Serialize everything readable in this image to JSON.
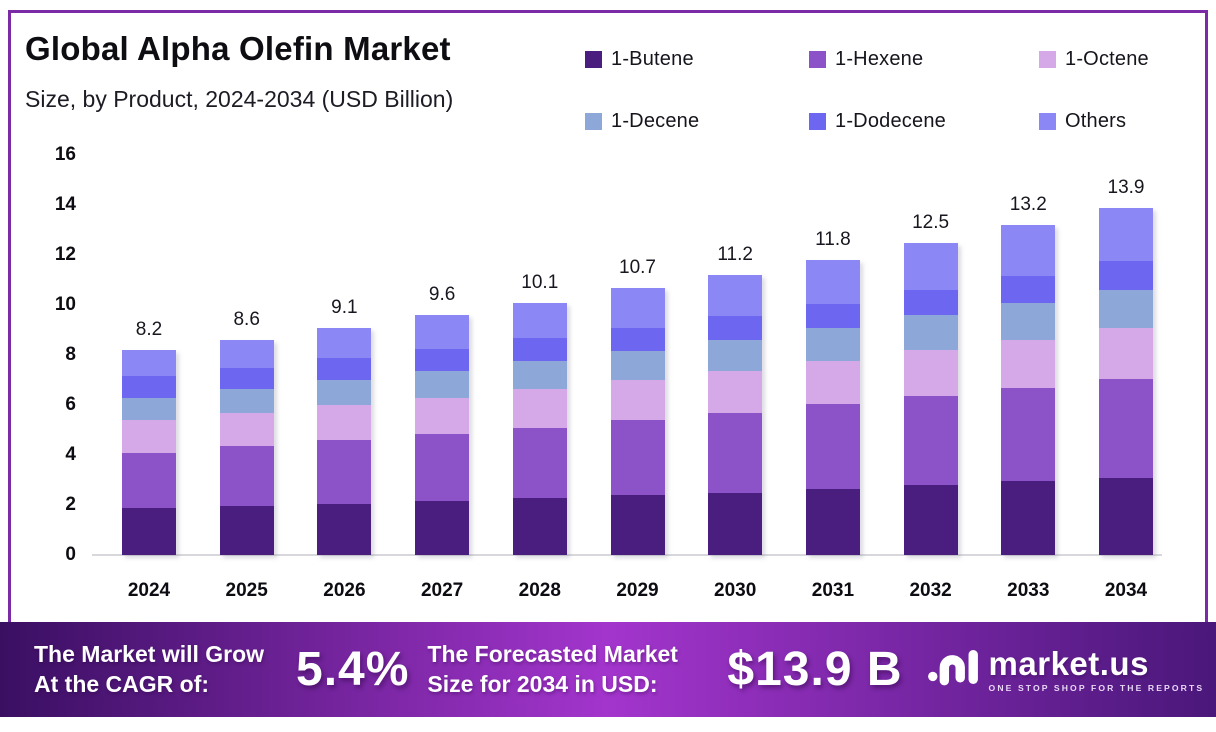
{
  "header": {
    "title": "Global Alpha Olefin Market",
    "subtitle": "Size, by Product, 2024-2034 (USD Billion)"
  },
  "frame": {
    "border_color": "#7B2BA6"
  },
  "chart_data": {
    "type": "bar",
    "stacked": true,
    "title": "Global Alpha Olefin Market Size, by Product, 2024-2034 (USD Billion)",
    "categories": [
      "2024",
      "2025",
      "2026",
      "2027",
      "2028",
      "2029",
      "2030",
      "2031",
      "2032",
      "2033",
      "2034"
    ],
    "series": [
      {
        "name": "1-Butene",
        "color": "#4A1E7E",
        "values": [
          1.9,
          1.95,
          2.05,
          2.15,
          2.3,
          2.4,
          2.5,
          2.65,
          2.8,
          2.95,
          3.1
        ]
      },
      {
        "name": "1-Hexene",
        "color": "#8C52C8",
        "values": [
          2.2,
          2.4,
          2.55,
          2.7,
          2.8,
          3.0,
          3.2,
          3.4,
          3.55,
          3.75,
          3.95
        ]
      },
      {
        "name": "1-Octene",
        "color": "#D5A9E8",
        "values": [
          1.3,
          1.35,
          1.4,
          1.45,
          1.55,
          1.6,
          1.65,
          1.7,
          1.85,
          1.9,
          2.05
        ]
      },
      {
        "name": "1-Decene",
        "color": "#8CA7D8",
        "values": [
          0.9,
          0.95,
          1.0,
          1.05,
          1.1,
          1.15,
          1.25,
          1.35,
          1.4,
          1.5,
          1.5
        ]
      },
      {
        "name": "1-Dodecene",
        "color": "#6D66F0",
        "values": [
          0.85,
          0.85,
          0.9,
          0.9,
          0.95,
          0.95,
          0.95,
          0.95,
          1.0,
          1.05,
          1.15
        ]
      },
      {
        "name": "Others",
        "color": "#8B87F4",
        "values": [
          1.05,
          1.1,
          1.2,
          1.35,
          1.4,
          1.6,
          1.65,
          1.75,
          1.9,
          2.05,
          2.15
        ]
      }
    ],
    "totals": [
      8.2,
      8.6,
      9.1,
      9.6,
      10.1,
      10.7,
      11.2,
      11.8,
      12.5,
      13.2,
      13.9
    ],
    "yticks": [
      0,
      2,
      4,
      6,
      8,
      10,
      12,
      14,
      16
    ],
    "ylim": [
      0,
      16
    ],
    "xlabel": "",
    "ylabel": "",
    "grid": false,
    "legend_position": "top-right"
  },
  "banner": {
    "cagr_label_line1": "The Market will Grow",
    "cagr_label_line2": "At the CAGR of:",
    "cagr_value": "5.4%",
    "forecast_label_line1": "The Forecasted Market",
    "forecast_label_line2": "Size for 2034 in USD:",
    "forecast_value": "$13.9 B",
    "gradient": [
      "#3A0F62",
      "#A335CD",
      "#4A177A"
    ]
  },
  "logo": {
    "name": "market.us",
    "tagline": "ONE STOP SHOP FOR THE REPORTS"
  }
}
